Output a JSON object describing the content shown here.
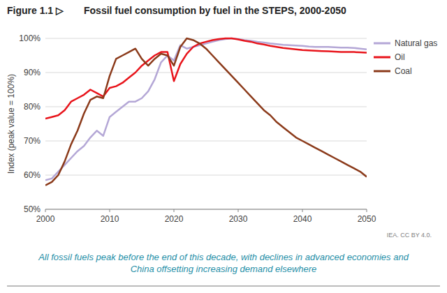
{
  "chart_data": {
    "type": "line",
    "figure_label": "Figure 1.1 ▷",
    "title": "Fossil fuel consumption by fuel in the STEPS, 2000-2050",
    "y_label": "Index (peak value = 100%)",
    "source": "IEA. CC BY 4.0.",
    "caption": "All fossil fuels peak before the end of this decade, with declines in advanced economies and China offsetting increasing demand elsewhere",
    "x": [
      2000,
      2001,
      2002,
      2003,
      2004,
      2005,
      2006,
      2007,
      2008,
      2009,
      2010,
      2011,
      2012,
      2013,
      2014,
      2015,
      2016,
      2017,
      2018,
      2019,
      2020,
      2021,
      2022,
      2023,
      2024,
      2025,
      2026,
      2027,
      2028,
      2029,
      2030,
      2031,
      2032,
      2033,
      2034,
      2035,
      2036,
      2037,
      2038,
      2039,
      2040,
      2041,
      2042,
      2043,
      2044,
      2045,
      2046,
      2047,
      2048,
      2049,
      2050
    ],
    "series": [
      {
        "name": "Natural gas",
        "color": "#b4a7d6",
        "values": [
          58.5,
          59,
          61,
          63,
          65,
          67,
          68.5,
          71,
          73,
          71.5,
          77,
          78.5,
          80,
          81.5,
          81.5,
          82.5,
          84.5,
          88,
          93,
          95,
          93.5,
          98,
          97,
          97.5,
          98,
          98.5,
          99,
          99.5,
          99.8,
          100,
          99.8,
          99.5,
          99.3,
          99,
          98.8,
          98.5,
          98.3,
          98.1,
          98,
          97.9,
          97.8,
          97.6,
          97.5,
          97.5,
          97.5,
          97.4,
          97.3,
          97.3,
          97.2,
          97,
          96.8
        ]
      },
      {
        "name": "Oil",
        "color": "#e8141b",
        "values": [
          76.5,
          77,
          77.5,
          79,
          81.5,
          82.5,
          83.5,
          85,
          84,
          83,
          85.5,
          86,
          87,
          88.5,
          90,
          92,
          93.5,
          95,
          96,
          96,
          87.5,
          92.5,
          95.5,
          97.5,
          98.5,
          99,
          99.5,
          99.8,
          100,
          100,
          99.7,
          99.3,
          99,
          98.5,
          98.2,
          97.8,
          97.5,
          97.2,
          97,
          96.8,
          96.6,
          96.5,
          96.4,
          96.3,
          96.2,
          96.1,
          96,
          96,
          96,
          95.9,
          95.8
        ]
      },
      {
        "name": "Coal",
        "color": "#8b3a1a",
        "values": [
          57,
          58,
          60,
          64,
          69,
          73,
          78,
          82,
          83,
          82.5,
          89,
          94,
          95,
          96,
          97,
          94,
          92,
          94,
          95.5,
          95,
          92,
          97.5,
          100,
          99.5,
          98.5,
          97,
          95,
          93,
          91,
          89,
          87,
          85,
          83,
          81,
          79,
          77.5,
          75.5,
          74,
          72.5,
          71,
          70,
          69,
          68,
          67,
          66,
          65,
          64,
          63,
          62,
          61,
          59.5
        ]
      }
    ],
    "xlim": [
      2000,
      2050
    ],
    "xticks": [
      2000,
      2010,
      2020,
      2030,
      2040,
      2050
    ],
    "ylim": [
      50,
      100
    ],
    "yticks": [
      {
        "value": 50,
        "label": "50%"
      },
      {
        "value": 60,
        "label": "60%"
      },
      {
        "value": 70,
        "label": "70%"
      },
      {
        "value": 80,
        "label": "80%"
      },
      {
        "value": 90,
        "label": "90%"
      },
      {
        "value": 100,
        "label": "100%"
      }
    ],
    "grid": true,
    "legend": "right"
  }
}
